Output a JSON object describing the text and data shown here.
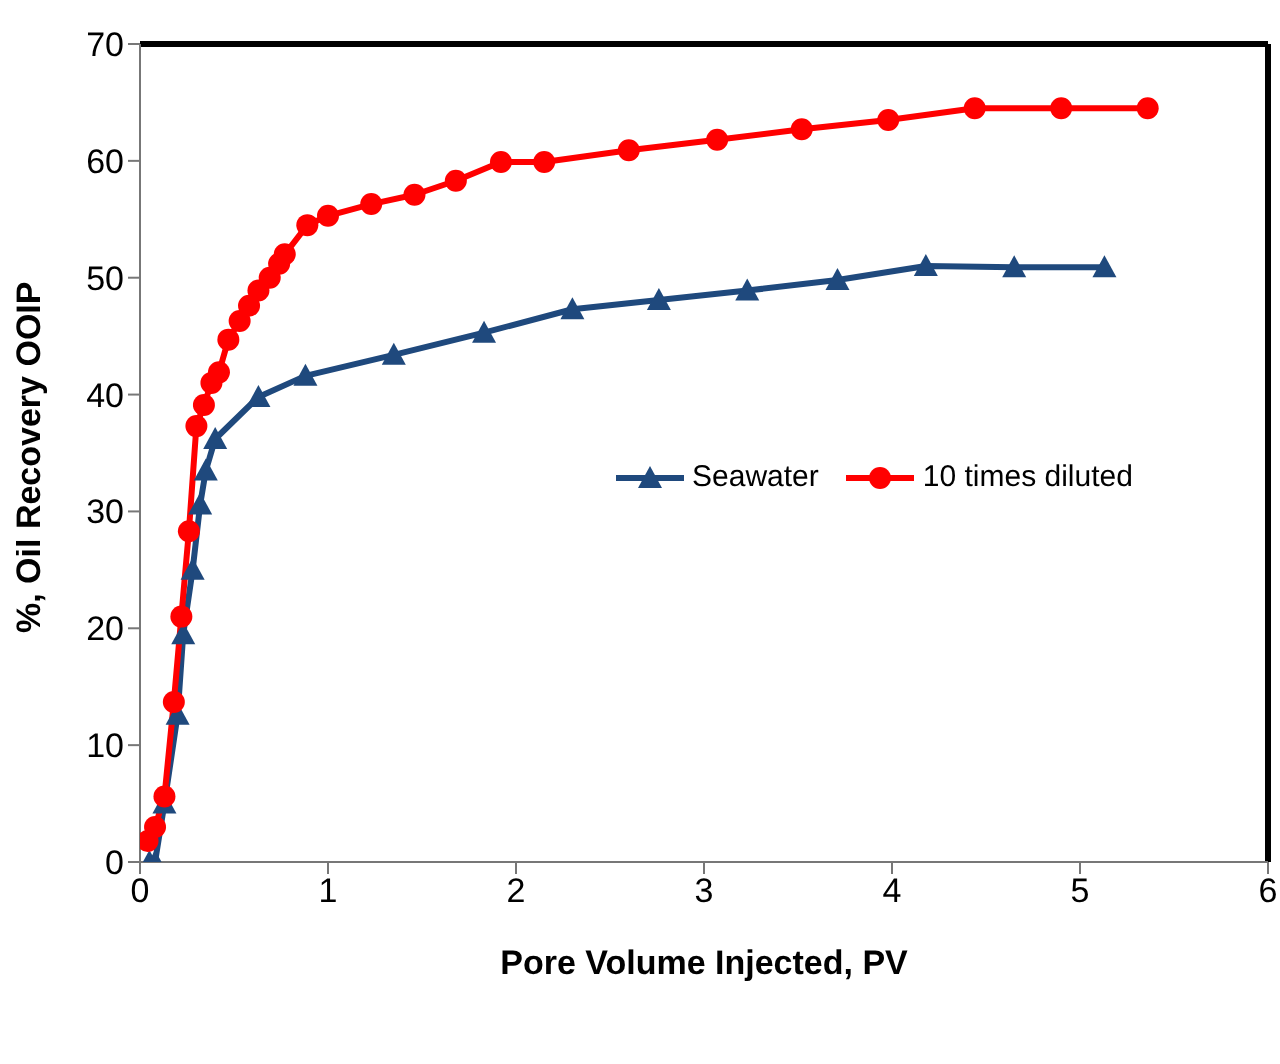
{
  "chart_data": {
    "type": "line",
    "xlabel": "Pore Volume Injected, PV",
    "ylabel": "%, Oil Recovery OOIP",
    "xlim": [
      0,
      6
    ],
    "xticks": [
      0,
      1,
      2,
      3,
      4,
      5,
      6
    ],
    "ylim": [
      0,
      70
    ],
    "yticks": [
      0,
      10,
      20,
      30,
      40,
      50,
      60,
      70
    ],
    "grid": false,
    "legend": "right",
    "series": [
      {
        "name": "Seawater",
        "color": "#1f497d",
        "marker": "triangle",
        "x": [
          0.05,
          0.08,
          0.13,
          0.2,
          0.23,
          0.28,
          0.32,
          0.35,
          0.4,
          0.63,
          0.88,
          1.35,
          1.83,
          2.3,
          2.76,
          3.23,
          3.71,
          4.18,
          4.65,
          5.13
        ],
        "values": [
          0,
          0,
          5,
          12.6,
          19.5,
          25,
          30.6,
          33.5,
          36.2,
          39.8,
          41.6,
          43.4,
          45.3,
          47.3,
          48.1,
          48.9,
          49.8,
          51,
          50.9,
          50.9
        ]
      },
      {
        "name": "10 times diluted",
        "color": "#ff0000",
        "marker": "circle",
        "x": [
          0.04,
          0.08,
          0.13,
          0.18,
          0.22,
          0.26,
          0.3,
          0.34,
          0.38,
          0.42,
          0.47,
          0.53,
          0.58,
          0.63,
          0.69,
          0.74,
          0.77,
          0.89,
          1.0,
          1.23,
          1.46,
          1.68,
          1.92,
          2.15,
          2.6,
          3.07,
          3.52,
          3.98,
          4.44,
          4.9,
          5.36
        ],
        "values": [
          1.8,
          3,
          5.6,
          13.7,
          21,
          28.3,
          37.3,
          39.1,
          41,
          41.9,
          44.7,
          46.3,
          47.6,
          48.9,
          50,
          51.2,
          52,
          54.5,
          55.3,
          56.3,
          57.1,
          58.3,
          59.9,
          59.9,
          60.9,
          61.8,
          62.7,
          63.5,
          64.5,
          64.5,
          64.5
        ]
      }
    ]
  }
}
